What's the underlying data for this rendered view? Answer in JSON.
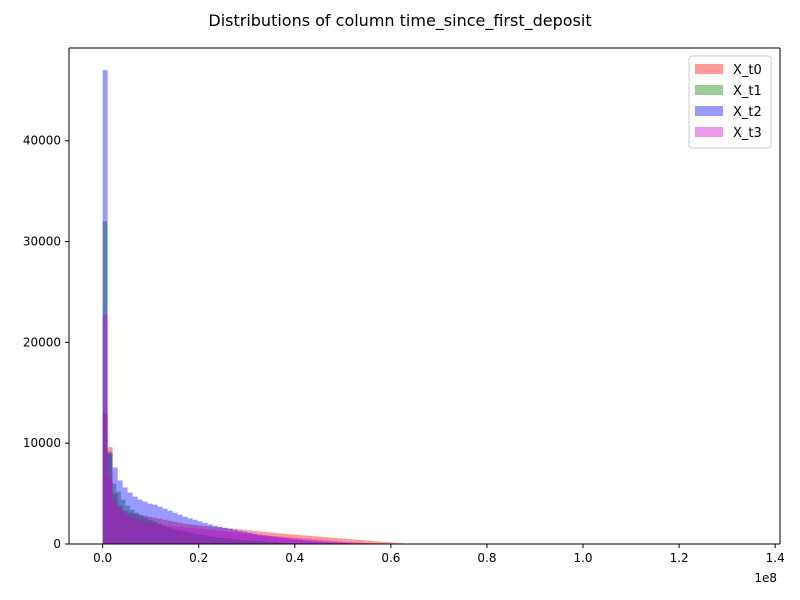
{
  "chart_data": {
    "type": "bar",
    "title": "Distributions of column time_since_first_deposit",
    "xlabel": "",
    "ylabel": "",
    "x_offset_label": "1e8",
    "xlim": [
      -0.07,
      1.41
    ],
    "ylim": [
      0,
      49200
    ],
    "x_ticks": [
      0.0,
      0.2,
      0.4,
      0.6,
      0.8,
      1.0,
      1.2,
      1.4
    ],
    "x_tick_labels": [
      "0.0",
      "0.2",
      "0.4",
      "0.6",
      "0.8",
      "1.0",
      "1.2",
      "1.4"
    ],
    "y_ticks": [
      0,
      10000,
      20000,
      30000,
      40000
    ],
    "y_tick_labels": [
      "0",
      "10000",
      "20000",
      "30000",
      "40000"
    ],
    "legend_position": "top-right",
    "series": [
      {
        "name": "X_t0",
        "color": "#ff0000",
        "opacity": 0.4,
        "bin_start": 0.0,
        "bin_width": 0.0104,
        "counts": [
          13000,
          9600,
          5000,
          3800,
          3300,
          3100,
          3000,
          2900,
          2800,
          2700,
          2600,
          2500,
          2400,
          2300,
          2200,
          2100,
          2000,
          1950,
          1900,
          1850,
          1800,
          1750,
          1700,
          1650,
          1600,
          1550,
          1500,
          1450,
          1400,
          1350,
          1300,
          1250,
          1200,
          1150,
          1100,
          1050,
          1000,
          960,
          920,
          880,
          840,
          800,
          760,
          720,
          680,
          640,
          600,
          560,
          520,
          480,
          440,
          400,
          360,
          320,
          280,
          240,
          200,
          160,
          120,
          80
        ]
      },
      {
        "name": "X_t1",
        "color": "#008000",
        "opacity": 0.4,
        "bin_start": 0.0,
        "bin_width": 0.0095,
        "counts": [
          32000,
          9200,
          6000,
          5200,
          4400,
          3800,
          3400,
          3100,
          2800,
          2600,
          2400,
          2200,
          2000,
          1800,
          1650,
          1500,
          1400,
          1300,
          1200,
          1100,
          1000,
          920,
          850,
          780,
          720,
          660,
          600,
          550,
          500,
          460,
          420,
          380,
          340,
          300,
          270,
          240,
          210,
          180,
          150,
          120,
          100,
          80
        ]
      },
      {
        "name": "X_t2",
        "color": "#0000ff",
        "opacity": 0.4,
        "bin_start": 0.0,
        "bin_width": 0.0104,
        "counts": [
          47000,
          9000,
          7600,
          6300,
          5600,
          5100,
          4700,
          4400,
          4200,
          4000,
          3900,
          3700,
          3500,
          3300,
          3100,
          2900,
          2700,
          2550,
          2400,
          2250,
          2100,
          1950,
          1800,
          1700,
          1600,
          1500,
          1400,
          1300,
          1200,
          1100,
          1000,
          920,
          840,
          770,
          700,
          640,
          580,
          520,
          470,
          420,
          370,
          320,
          280,
          240,
          200,
          170,
          140,
          110,
          90,
          70
        ]
      },
      {
        "name": "X_t3",
        "color": "#cc00cc",
        "opacity": 0.4,
        "bin_start": 0.0,
        "bin_width": 0.0104,
        "counts": [
          22700,
          6500,
          4200,
          3500,
          3000,
          2700,
          2500,
          2350,
          2200,
          2100,
          2000,
          1900,
          1850,
          1800,
          1750,
          1700,
          1650,
          1600,
          1550,
          1500,
          1450,
          1400,
          1350,
          1300,
          1250,
          1200,
          1150,
          1100,
          1050,
          1000,
          950,
          900,
          860,
          820,
          780,
          740,
          700,
          660,
          620,
          580,
          540,
          500,
          460,
          420,
          380,
          340,
          300,
          260,
          220,
          180,
          150,
          120,
          100,
          80,
          60,
          40
        ]
      }
    ]
  }
}
